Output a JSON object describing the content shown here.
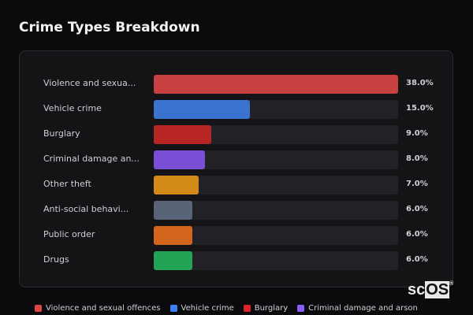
{
  "title": "Crime Types Breakdown",
  "logo": {
    "text_a": "sc",
    "text_b": "OS",
    "mark": "®"
  },
  "chart_data": {
    "type": "bar",
    "orientation": "horizontal",
    "title": "Crime Types Breakdown",
    "categories": [
      "Violence and sexua...",
      "Vehicle crime",
      "Burglary",
      "Criminal damage an...",
      "Other theft",
      "Anti-social behavi...",
      "Public order",
      "Drugs"
    ],
    "values": [
      38.0,
      15.0,
      9.0,
      8.0,
      7.0,
      6.0,
      6.0,
      6.0
    ],
    "value_labels": [
      "38.0%",
      "15.0%",
      "9.0%",
      "8.0%",
      "7.0%",
      "6.0%",
      "6.0%",
      "6.0%"
    ],
    "colors": [
      "#c94040",
      "#3a72d0",
      "#b82525",
      "#7a4fd6",
      "#d48a18",
      "#5a6478",
      "#d2661c",
      "#22a355"
    ],
    "xlim": [
      0,
      38
    ],
    "grid": false,
    "legend_placement": "bottom",
    "legend": [
      {
        "label": "Violence and sexual offences",
        "color": "#e04545"
      },
      {
        "label": "Vehicle crime",
        "color": "#3b82f6"
      },
      {
        "label": "Burglary",
        "color": "#dc2626"
      },
      {
        "label": "Criminal damage and arson",
        "color": "#8b5cf6"
      }
    ]
  }
}
